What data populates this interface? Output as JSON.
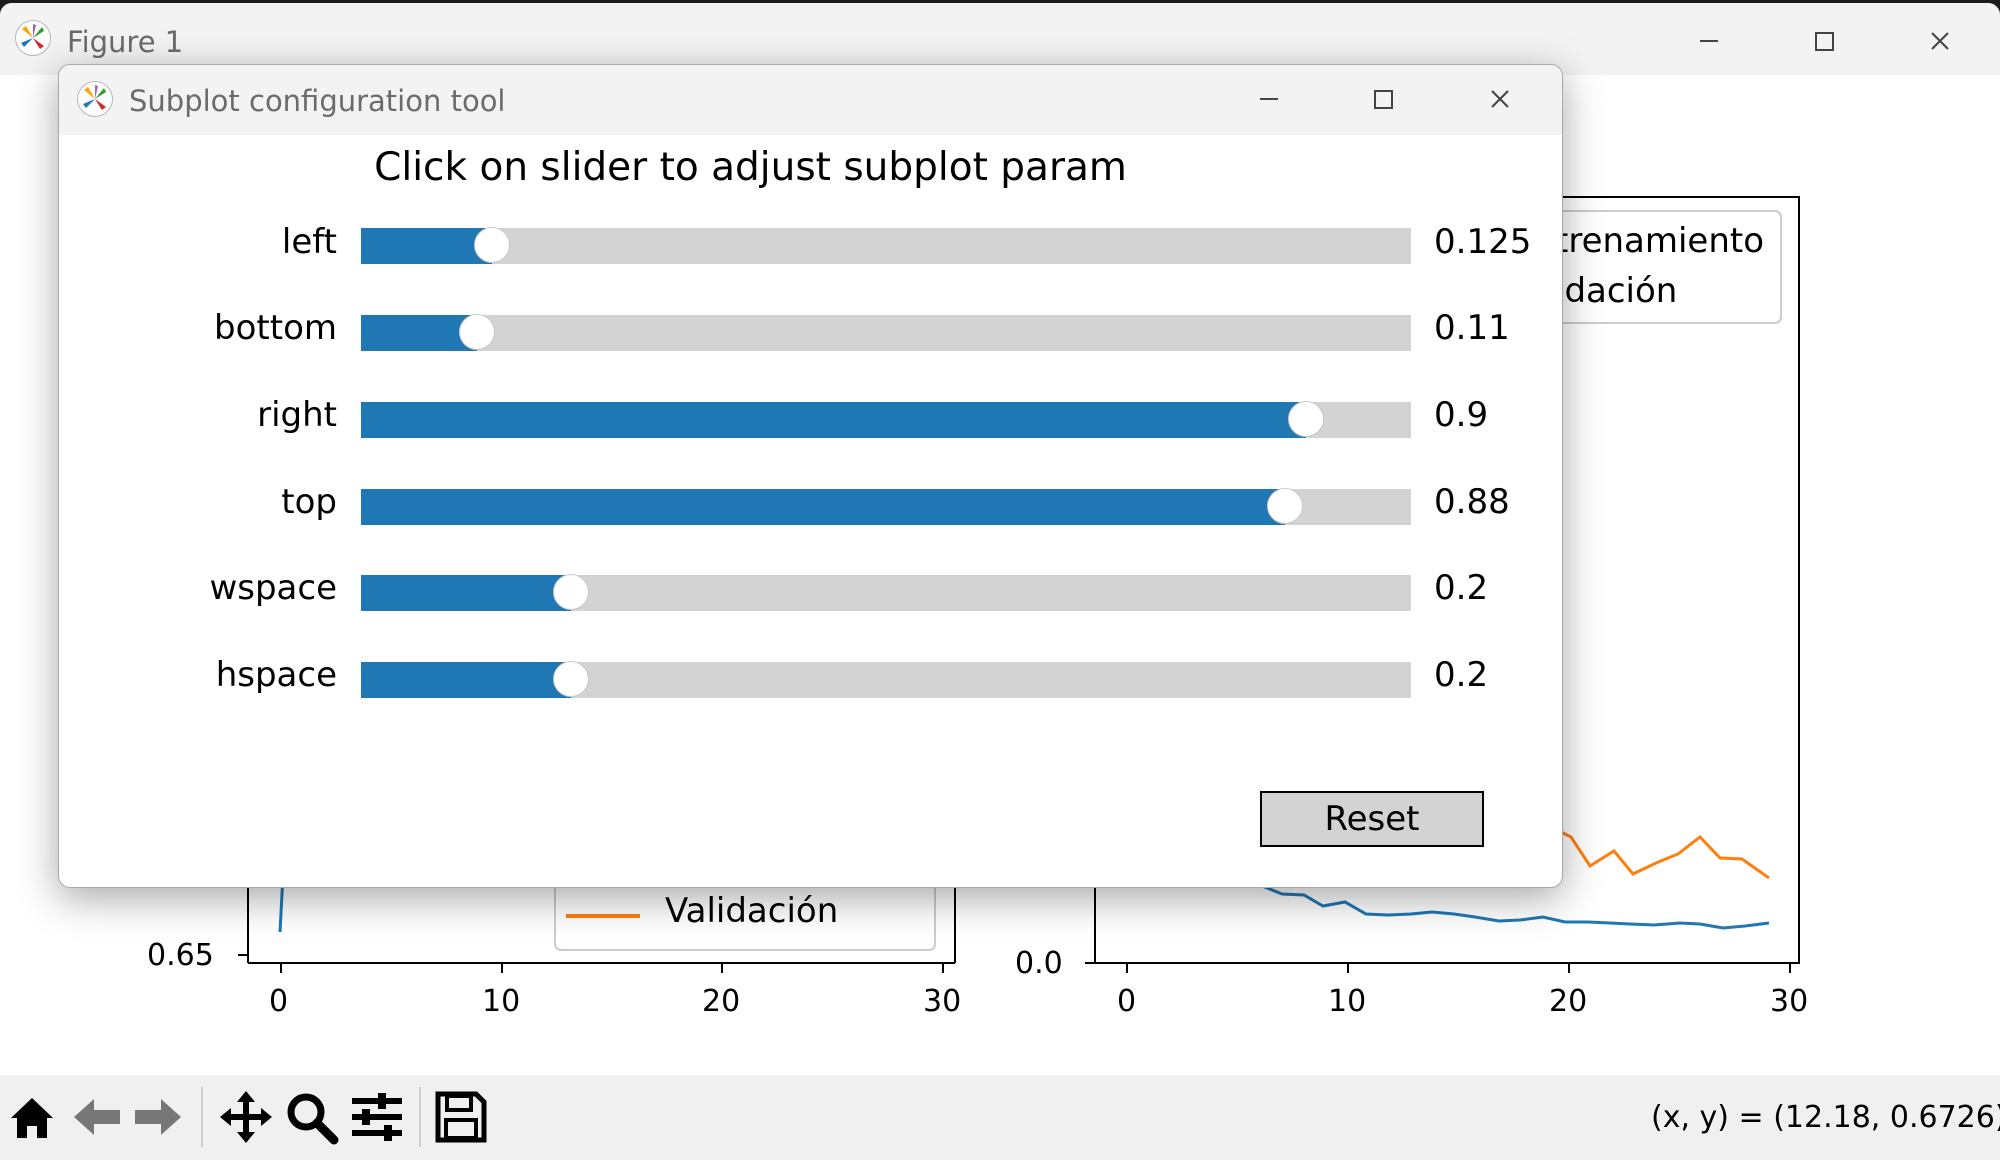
{
  "window": {
    "title": "Figure 1"
  },
  "dialog": {
    "title": "Subplot configuration tool",
    "heading": "Click on slider to adjust subplot param",
    "reset_label": "Reset",
    "params": [
      {
        "label": "left",
        "value": "0.125",
        "fraction": 0.125
      },
      {
        "label": "bottom",
        "value": "0.11",
        "fraction": 0.11
      },
      {
        "label": "right",
        "value": "0.9",
        "fraction": 0.9
      },
      {
        "label": "top",
        "value": "0.88",
        "fraction": 0.88
      },
      {
        "label": "wspace",
        "value": "0.2",
        "fraction": 0.2
      },
      {
        "label": "hspace",
        "value": "0.2",
        "fraction": 0.2
      }
    ]
  },
  "figure": {
    "left_plot": {
      "ytick": "0.65",
      "xticks": [
        "0",
        "10",
        "20",
        "30"
      ],
      "legend_visible": [
        "Validación"
      ]
    },
    "right_plot": {
      "ytick": "0.0",
      "xticks": [
        "0",
        "10",
        "20",
        "30"
      ],
      "legend_visible": [
        "trenamiento",
        "idación"
      ]
    }
  },
  "toolbar": {
    "icons": [
      "home-icon",
      "back-icon",
      "forward-icon",
      "pan-icon",
      "zoom-icon",
      "configure-subplots-icon",
      "save-icon"
    ],
    "coordinates": "(x, y) = (12.18, 0.6726)"
  },
  "colors": {
    "slider_fill": "#1f77b4",
    "slider_track": "#d3d3d3",
    "series_blue": "#1f77b4",
    "series_orange": "#ff7f0e"
  },
  "chart_data": [
    {
      "type": "line",
      "xlim": [
        0,
        30
      ],
      "series": [
        {
          "name": "Entrenamiento",
          "color": "#1f77b4",
          "x": [
            0,
            10,
            13,
            20,
            25,
            29
          ],
          "y": [
            0.12,
            0.07,
            0.065,
            0.055,
            0.05,
            0.055
          ]
        },
        {
          "name": "Validación",
          "color": "#ff7f0e",
          "x": [
            19,
            20,
            21,
            22,
            23,
            24,
            25,
            26,
            27,
            28,
            29
          ],
          "y": [
            0.18,
            0.16,
            0.11,
            0.13,
            0.09,
            0.1,
            0.12,
            0.15,
            0.12,
            0.11,
            0.09
          ]
        }
      ]
    }
  ]
}
